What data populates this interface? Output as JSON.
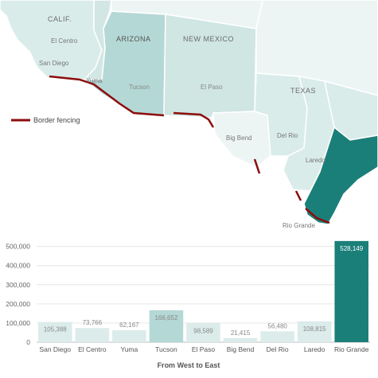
{
  "map": {
    "state_labels": {
      "calif": "CALIF.",
      "arizona": "ARIZONA",
      "new_mexico": "NEW MEXICO",
      "texas": "TEXAS"
    },
    "sector_labels": {
      "el_centro": "El Centro",
      "san_diego": "San Diego",
      "yuma": "Yuma",
      "tucson": "Tucson",
      "el_paso": "El Paso",
      "big_bend": "Big Bend",
      "del_rio": "Del Rio",
      "laredo": "Laredo",
      "rio_grande": "Rio Grande"
    },
    "legend_label": "Border fencing",
    "colors": {
      "water": "#ffffff",
      "mexico_land": "#ffffff",
      "light": "#d9ecea",
      "arizona": "#b4d8d5",
      "nm": "#cfe6e3",
      "lightest": "#ecf5f4",
      "rio_grande": "#1b7f79",
      "fence": "#8b0d0d",
      "border_line": "#ffffff"
    }
  },
  "chart_data": {
    "type": "bar",
    "categories": [
      "San Diego",
      "El Centro",
      "Yuma",
      "Tucson",
      "El Paso",
      "Big Bend",
      "Del Rio",
      "Laredo",
      "Rio Grande"
    ],
    "values": [
      105388,
      73766,
      62167,
      166652,
      98589,
      21415,
      56480,
      108815,
      528149
    ],
    "value_labels": [
      "105,388",
      "73,766",
      "62,167",
      "166,652",
      "98,589",
      "21,415",
      "56,480",
      "108,815",
      "528,149"
    ],
    "y_ticks": [
      0,
      100000,
      200000,
      300000,
      400000,
      500000
    ],
    "y_tick_labels": [
      "0",
      "100,000",
      "200,000",
      "300,000",
      "400,000",
      "500,000"
    ],
    "ylim": [
      0,
      540000
    ],
    "xlabel": "From West to East",
    "grid": true,
    "bar_colors": [
      "#dbecea",
      "#dbecea",
      "#dbecea",
      "#b4d8d5",
      "#dbecea",
      "#dbecea",
      "#dbecea",
      "#dbecea",
      "#1b7f79"
    ],
    "label_colors": [
      "#888888",
      "#888888",
      "#888888",
      "#888888",
      "#888888",
      "#888888",
      "#888888",
      "#888888",
      "#ffffff"
    ]
  }
}
